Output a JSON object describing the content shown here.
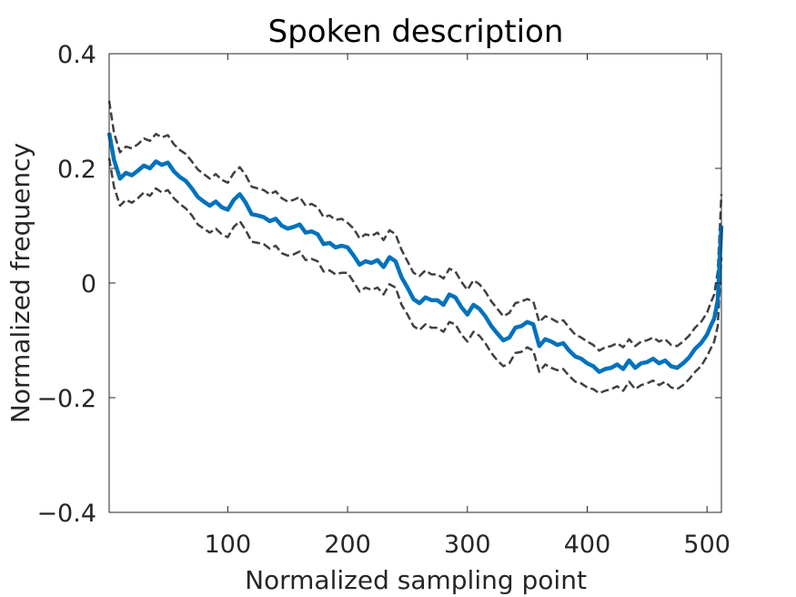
{
  "chart_data": {
    "type": "line",
    "title": "Spoken description",
    "xlabel": "Normalized sampling point",
    "ylabel": "Normalized frequency",
    "xlim": [
      1,
      512
    ],
    "ylim": [
      -0.4,
      0.4
    ],
    "x_ticks": [
      100,
      200,
      300,
      400,
      500
    ],
    "x_tick_labels": [
      "100",
      "200",
      "300",
      "400",
      "500"
    ],
    "y_ticks": [
      -0.4,
      -0.2,
      0,
      0.2,
      0.4
    ],
    "y_tick_labels": [
      "−0.4",
      "−0.2",
      "0",
      "0.2",
      "0.4"
    ],
    "grid": false,
    "legend": "none",
    "colors": {
      "mean": "#0072bd",
      "bounds": "#404040",
      "axes": "#262626"
    },
    "x": [
      1,
      5,
      10,
      15,
      20,
      25,
      30,
      35,
      40,
      45,
      50,
      55,
      60,
      65,
      70,
      75,
      80,
      85,
      90,
      95,
      100,
      105,
      110,
      115,
      120,
      125,
      130,
      135,
      140,
      145,
      150,
      155,
      160,
      165,
      170,
      175,
      180,
      185,
      190,
      195,
      200,
      205,
      210,
      215,
      220,
      225,
      230,
      235,
      240,
      245,
      250,
      255,
      260,
      265,
      270,
      275,
      280,
      285,
      290,
      295,
      300,
      305,
      310,
      315,
      320,
      325,
      330,
      335,
      340,
      345,
      350,
      355,
      360,
      365,
      370,
      375,
      380,
      385,
      390,
      395,
      400,
      405,
      410,
      415,
      420,
      425,
      430,
      435,
      440,
      445,
      450,
      455,
      460,
      465,
      470,
      475,
      480,
      485,
      490,
      495,
      500,
      503,
      506,
      509,
      512
    ],
    "series": [
      {
        "role": "mean",
        "style": "solid",
        "values": [
          0.262,
          0.215,
          0.182,
          0.192,
          0.188,
          0.196,
          0.205,
          0.2,
          0.212,
          0.206,
          0.21,
          0.195,
          0.185,
          0.178,
          0.165,
          0.15,
          0.142,
          0.135,
          0.142,
          0.132,
          0.128,
          0.145,
          0.155,
          0.14,
          0.12,
          0.118,
          0.115,
          0.108,
          0.112,
          0.1,
          0.095,
          0.098,
          0.102,
          0.088,
          0.09,
          0.085,
          0.068,
          0.07,
          0.062,
          0.065,
          0.062,
          0.048,
          0.032,
          0.038,
          0.035,
          0.04,
          0.028,
          0.045,
          0.038,
          0.01,
          -0.008,
          -0.028,
          -0.035,
          -0.025,
          -0.03,
          -0.03,
          -0.038,
          -0.02,
          -0.025,
          -0.042,
          -0.055,
          -0.038,
          -0.045,
          -0.058,
          -0.075,
          -0.088,
          -0.1,
          -0.095,
          -0.078,
          -0.075,
          -0.068,
          -0.072,
          -0.11,
          -0.098,
          -0.102,
          -0.108,
          -0.105,
          -0.118,
          -0.128,
          -0.132,
          -0.14,
          -0.145,
          -0.155,
          -0.15,
          -0.148,
          -0.142,
          -0.15,
          -0.135,
          -0.148,
          -0.14,
          -0.138,
          -0.132,
          -0.14,
          -0.135,
          -0.145,
          -0.148,
          -0.14,
          -0.13,
          -0.115,
          -0.105,
          -0.09,
          -0.075,
          -0.062,
          -0.03,
          0.1
        ]
      },
      {
        "role": "upper-bound",
        "style": "dashed",
        "values": [
          0.318,
          0.262,
          0.228,
          0.238,
          0.235,
          0.242,
          0.252,
          0.248,
          0.26,
          0.254,
          0.258,
          0.242,
          0.232,
          0.225,
          0.212,
          0.198,
          0.19,
          0.182,
          0.19,
          0.18,
          0.175,
          0.192,
          0.202,
          0.188,
          0.168,
          0.165,
          0.162,
          0.155,
          0.16,
          0.148,
          0.142,
          0.145,
          0.15,
          0.135,
          0.138,
          0.132,
          0.115,
          0.118,
          0.11,
          0.112,
          0.105,
          0.095,
          0.078,
          0.085,
          0.082,
          0.088,
          0.075,
          0.092,
          0.085,
          0.058,
          0.038,
          0.018,
          0.012,
          0.022,
          0.015,
          0.015,
          0.008,
          0.025,
          0.02,
          0.002,
          -0.012,
          0.005,
          -0.002,
          -0.015,
          -0.032,
          -0.045,
          -0.058,
          -0.052,
          -0.035,
          -0.032,
          -0.028,
          -0.032,
          -0.068,
          -0.058,
          -0.062,
          -0.068,
          -0.065,
          -0.078,
          -0.09,
          -0.095,
          -0.102,
          -0.108,
          -0.118,
          -0.112,
          -0.11,
          -0.105,
          -0.112,
          -0.098,
          -0.11,
          -0.102,
          -0.1,
          -0.095,
          -0.102,
          -0.098,
          -0.108,
          -0.11,
          -0.102,
          -0.092,
          -0.078,
          -0.068,
          -0.052,
          -0.035,
          -0.02,
          0.02,
          0.155
        ]
      },
      {
        "role": "lower-bound",
        "style": "dashed",
        "values": [
          0.218,
          0.168,
          0.135,
          0.145,
          0.14,
          0.148,
          0.158,
          0.152,
          0.165,
          0.158,
          0.162,
          0.148,
          0.138,
          0.13,
          0.118,
          0.102,
          0.095,
          0.088,
          0.095,
          0.085,
          0.08,
          0.098,
          0.108,
          0.092,
          0.072,
          0.07,
          0.068,
          0.06,
          0.065,
          0.052,
          0.048,
          0.05,
          0.055,
          0.04,
          0.042,
          0.038,
          0.02,
          0.022,
          0.015,
          0.018,
          0.018,
          0.002,
          -0.015,
          -0.008,
          -0.012,
          -0.008,
          -0.02,
          -0.002,
          -0.008,
          -0.038,
          -0.055,
          -0.075,
          -0.082,
          -0.072,
          -0.078,
          -0.078,
          -0.085,
          -0.068,
          -0.072,
          -0.09,
          -0.102,
          -0.085,
          -0.092,
          -0.105,
          -0.122,
          -0.135,
          -0.145,
          -0.14,
          -0.122,
          -0.12,
          -0.112,
          -0.118,
          -0.155,
          -0.142,
          -0.148,
          -0.152,
          -0.15,
          -0.162,
          -0.172,
          -0.175,
          -0.182,
          -0.185,
          -0.192,
          -0.188,
          -0.185,
          -0.18,
          -0.188,
          -0.172,
          -0.185,
          -0.178,
          -0.175,
          -0.17,
          -0.178,
          -0.172,
          -0.182,
          -0.185,
          -0.178,
          -0.168,
          -0.155,
          -0.145,
          -0.128,
          -0.115,
          -0.102,
          -0.075,
          0.045
        ]
      }
    ]
  }
}
